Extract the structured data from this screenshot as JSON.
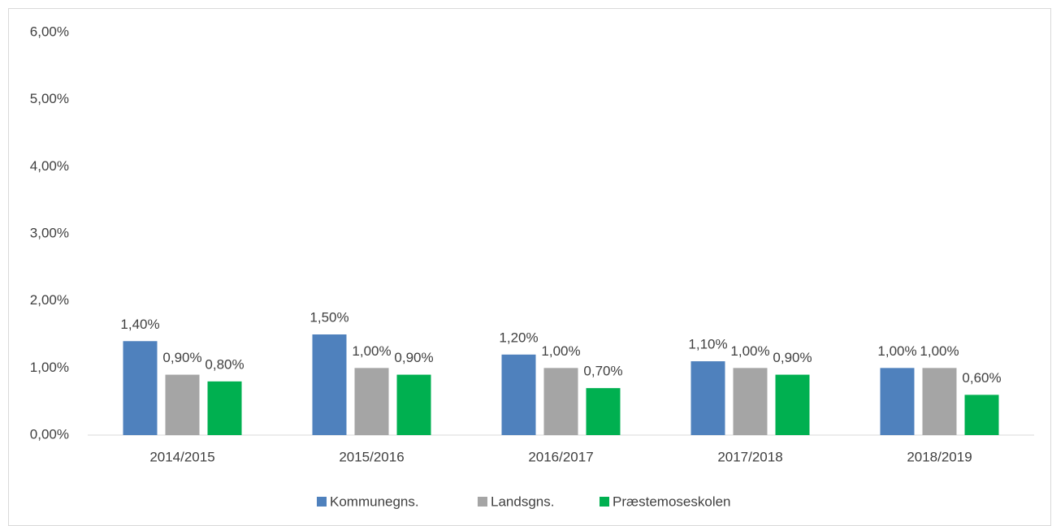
{
  "chart_data": {
    "type": "bar",
    "categories": [
      "2014/2015",
      "2015/2016",
      "2016/2017",
      "2017/2018",
      "2018/2019"
    ],
    "series": [
      {
        "name": "Kommunegns.",
        "color": "#4f81bd",
        "values": [
          1.4,
          1.5,
          1.2,
          1.1,
          1.0
        ],
        "value_labels": [
          "1,40%",
          "1,50%",
          "1,20%",
          "1,10%",
          "1,00%"
        ]
      },
      {
        "name": "Landsgns.",
        "color": "#a5a5a5",
        "values": [
          0.9,
          1.0,
          1.0,
          1.0,
          1.0
        ],
        "value_labels": [
          "0,90%",
          "1,00%",
          "1,00%",
          "1,00%",
          "1,00%"
        ]
      },
      {
        "name": "Præstemoseskolen",
        "color": "#00b050",
        "values": [
          0.8,
          0.9,
          0.7,
          0.9,
          0.6
        ],
        "value_labels": [
          "0,80%",
          "0,90%",
          "0,70%",
          "0,90%",
          "0,60%"
        ]
      }
    ],
    "ylim": [
      0,
      6
    ],
    "yticks": [
      {
        "value": 0,
        "label": "0,00%"
      },
      {
        "value": 1,
        "label": "1,00%"
      },
      {
        "value": 2,
        "label": "2,00%"
      },
      {
        "value": 3,
        "label": "3,00%"
      },
      {
        "value": 4,
        "label": "4,00%"
      },
      {
        "value": 5,
        "label": "5,00%"
      },
      {
        "value": 6,
        "label": "6,00%"
      }
    ],
    "grid": false,
    "legend": "bottom"
  }
}
